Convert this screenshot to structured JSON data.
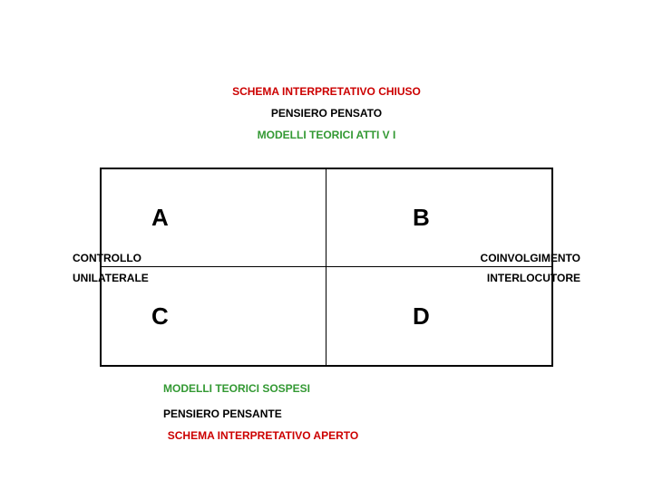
{
  "type": "matrix-2x2-diagram",
  "background_color": "#ffffff",
  "colors": {
    "red": "#cc0000",
    "black": "#000000",
    "green": "#339933",
    "border": "#000000"
  },
  "font_family": "Arial",
  "header": {
    "line1": {
      "text": "SCHEMA INTERPRETATIVO CHIUSO",
      "color": "#cc0000",
      "fontsize": 12
    },
    "line2": {
      "text": "PENSIERO PENSATO",
      "color": "#000000",
      "fontsize": 12
    },
    "line3": {
      "text": "MODELLI TEORICI ATTI V I",
      "color": "#339933",
      "fontsize": 12
    }
  },
  "matrix": {
    "cells": {
      "a": "A",
      "b": "B",
      "c": "C",
      "d": "D"
    },
    "cell_fontsize": 26,
    "border_width_outer": 2,
    "border_width_inner": 1
  },
  "axes": {
    "left_upper": {
      "text": "CONTROLLO",
      "color": "#000000",
      "fontsize": 12
    },
    "left_lower": {
      "text": "UNILATERALE",
      "color": "#000000",
      "fontsize": 12
    },
    "right_upper": {
      "text": "COINVOLGIMENTO",
      "color": "#000000",
      "fontsize": 12
    },
    "right_lower": {
      "text": "INTERLOCUTORE",
      "color": "#000000",
      "fontsize": 12
    }
  },
  "footer": {
    "line1": {
      "text": "MODELLI TEORICI SOSPESI",
      "color": "#339933",
      "fontsize": 12
    },
    "line2": {
      "text": "PENSIERO PENSANTE",
      "color": "#000000",
      "fontsize": 12
    },
    "line3": {
      "text": "SCHEMA INTERPRETATIVO APERTO",
      "color": "#cc0000",
      "fontsize": 12
    }
  }
}
